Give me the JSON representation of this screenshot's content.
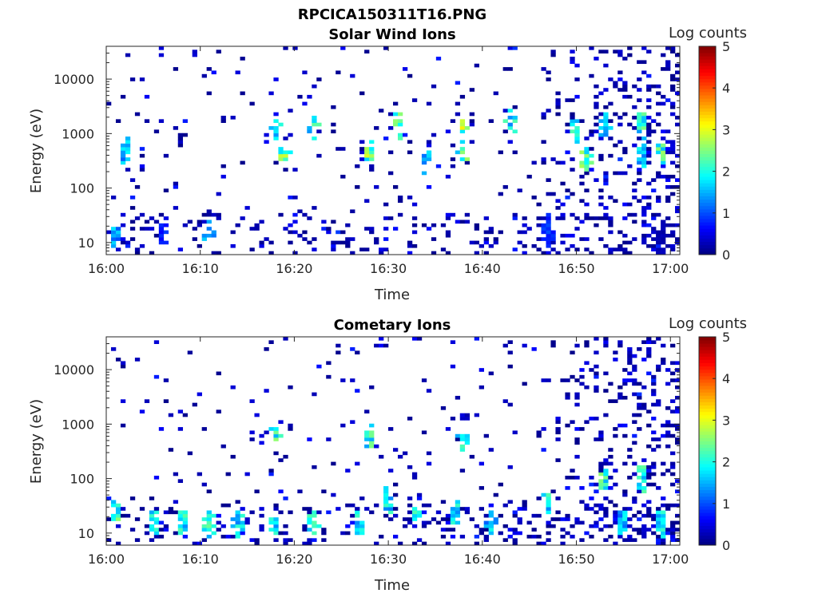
{
  "figure_title": "RPCICA150311T16.PNG",
  "colorbar": {
    "label": "Log counts",
    "ticks": [
      "0",
      "1",
      "2",
      "3",
      "4",
      "5"
    ],
    "range": [
      0,
      5
    ],
    "colormap": "jet"
  },
  "chart_data": [
    {
      "type": "heatmap",
      "title": "Solar Wind Ions",
      "xlabel": "Time",
      "ylabel": "Energy (eV)",
      "x_ticks": [
        "16:00",
        "16:10",
        "16:20",
        "16:30",
        "16:40",
        "16:50",
        "17:00"
      ],
      "xlim": [
        "16:00",
        "17:01"
      ],
      "y_ticks": [
        "10",
        "100",
        "1000",
        "10000"
      ],
      "ylim": [
        6,
        40000
      ],
      "yscale": "log",
      "z_label": "Log counts",
      "zlim": [
        0,
        5
      ],
      "seed": 11,
      "activity": [
        {
          "time": "16:01",
          "energy": 15,
          "log_counts": 1.8
        },
        {
          "time": "16:02",
          "energy": 500,
          "log_counts": 1.9
        },
        {
          "time": "16:06",
          "energy": 15,
          "log_counts": 1.0
        },
        {
          "time": "16:11",
          "energy": 15,
          "log_counts": 2.0
        },
        {
          "time": "16:18",
          "energy": 1200,
          "log_counts": 2.2
        },
        {
          "time": "16:19",
          "energy": 450,
          "log_counts": 3.0
        },
        {
          "time": "16:22",
          "energy": 1400,
          "log_counts": 2.4
        },
        {
          "time": "16:28",
          "energy": 450,
          "log_counts": 3.0
        },
        {
          "time": "16:31",
          "energy": 1400,
          "log_counts": 2.6
        },
        {
          "time": "16:34",
          "energy": 300,
          "log_counts": 2.0
        },
        {
          "time": "16:38",
          "energy": 1400,
          "log_counts": 3.2
        },
        {
          "time": "16:38",
          "energy": 500,
          "log_counts": 2.8
        },
        {
          "time": "16:43",
          "energy": 1500,
          "log_counts": 2.3
        },
        {
          "time": "16:47",
          "energy": 15,
          "log_counts": 1.2
        },
        {
          "time": "16:50",
          "energy": 1200,
          "log_counts": 2.4
        },
        {
          "time": "16:51",
          "energy": 350,
          "log_counts": 2.8
        },
        {
          "time": "16:53",
          "energy": 1400,
          "log_counts": 1.8
        },
        {
          "time": "16:57",
          "energy": 1400,
          "log_counts": 2.5
        },
        {
          "time": "16:57",
          "energy": 400,
          "log_counts": 2.2
        },
        {
          "time": "16:59",
          "energy": 450,
          "log_counts": 2.7
        },
        {
          "time": "16:59",
          "energy": 15,
          "log_counts": 0.3
        }
      ]
    },
    {
      "type": "heatmap",
      "title": "Cometary Ions",
      "xlabel": "Time",
      "ylabel": "Energy (eV)",
      "x_ticks": [
        "16:00",
        "16:10",
        "16:20",
        "16:30",
        "16:40",
        "16:50",
        "17:00"
      ],
      "xlim": [
        "16:00",
        "17:01"
      ],
      "y_ticks": [
        "10",
        "100",
        "1000",
        "10000"
      ],
      "ylim": [
        6,
        40000
      ],
      "yscale": "log",
      "z_label": "Log counts",
      "zlim": [
        0,
        5
      ],
      "seed": 29,
      "activity": [
        {
          "time": "16:01",
          "energy": 25,
          "log_counts": 2.6
        },
        {
          "time": "16:05",
          "energy": 15,
          "log_counts": 2.2
        },
        {
          "time": "16:08",
          "energy": 15,
          "log_counts": 2.4
        },
        {
          "time": "16:11",
          "energy": 15,
          "log_counts": 2.6
        },
        {
          "time": "16:14",
          "energy": 15,
          "log_counts": 2.2
        },
        {
          "time": "16:18",
          "energy": 15,
          "log_counts": 2.3
        },
        {
          "time": "16:18",
          "energy": 600,
          "log_counts": 2.6
        },
        {
          "time": "16:22",
          "energy": 15,
          "log_counts": 2.4
        },
        {
          "time": "16:27",
          "energy": 15,
          "log_counts": 2.3
        },
        {
          "time": "16:28",
          "energy": 550,
          "log_counts": 2.5
        },
        {
          "time": "16:30",
          "energy": 40,
          "log_counts": 2.2
        },
        {
          "time": "16:33",
          "energy": 25,
          "log_counts": 2.4
        },
        {
          "time": "16:37",
          "energy": 25,
          "log_counts": 2.3
        },
        {
          "time": "16:38",
          "energy": 600,
          "log_counts": 2.4
        },
        {
          "time": "16:41",
          "energy": 15,
          "log_counts": 2.0
        },
        {
          "time": "16:47",
          "energy": 40,
          "log_counts": 2.3
        },
        {
          "time": "16:53",
          "energy": 80,
          "log_counts": 2.6
        },
        {
          "time": "16:55",
          "energy": 15,
          "log_counts": 2.0
        },
        {
          "time": "16:57",
          "energy": 100,
          "log_counts": 2.4
        },
        {
          "time": "16:59",
          "energy": 15,
          "log_counts": 2.3
        }
      ]
    }
  ]
}
